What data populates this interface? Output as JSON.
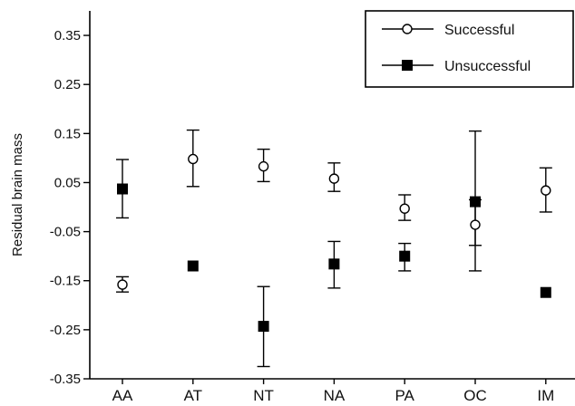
{
  "chart_data": {
    "type": "scatter",
    "title": "",
    "xlabel": "",
    "ylabel": "Residual brain mass",
    "categories": [
      "AA",
      "AT",
      "NT",
      "NA",
      "PA",
      "OC",
      "IM"
    ],
    "ylim": [
      -0.35,
      0.4
    ],
    "yticks": [
      -0.35,
      -0.25,
      -0.15,
      -0.05,
      0.05,
      0.15,
      0.25,
      0.35
    ],
    "ytick_labels": [
      "-0.35",
      "-0.25",
      "-0.15",
      "-0.05",
      "0.05",
      "0.15",
      "0.25",
      "0.35"
    ],
    "grid": false,
    "legend_position": "top-right",
    "series": [
      {
        "name": "Successful",
        "marker": "open-circle",
        "color": "#000000",
        "values": [
          -0.158,
          0.098,
          0.083,
          0.058,
          -0.003,
          -0.036,
          0.034
        ],
        "err_low": [
          -0.173,
          0.042,
          0.052,
          0.032,
          -0.027,
          -0.078,
          -0.01
        ],
        "err_high": [
          -0.142,
          0.157,
          0.118,
          0.09,
          0.025,
          0.015,
          0.08
        ]
      },
      {
        "name": "Unsuccessful",
        "marker": "filled-square",
        "color": "#000000",
        "values": [
          0.037,
          -0.12,
          -0.243,
          -0.116,
          -0.1,
          0.011,
          -0.174
        ],
        "err_low": [
          -0.022,
          null,
          -0.325,
          -0.165,
          -0.13,
          -0.13,
          null
        ],
        "err_high": [
          0.097,
          null,
          -0.162,
          -0.07,
          -0.074,
          0.155,
          null
        ]
      }
    ]
  }
}
